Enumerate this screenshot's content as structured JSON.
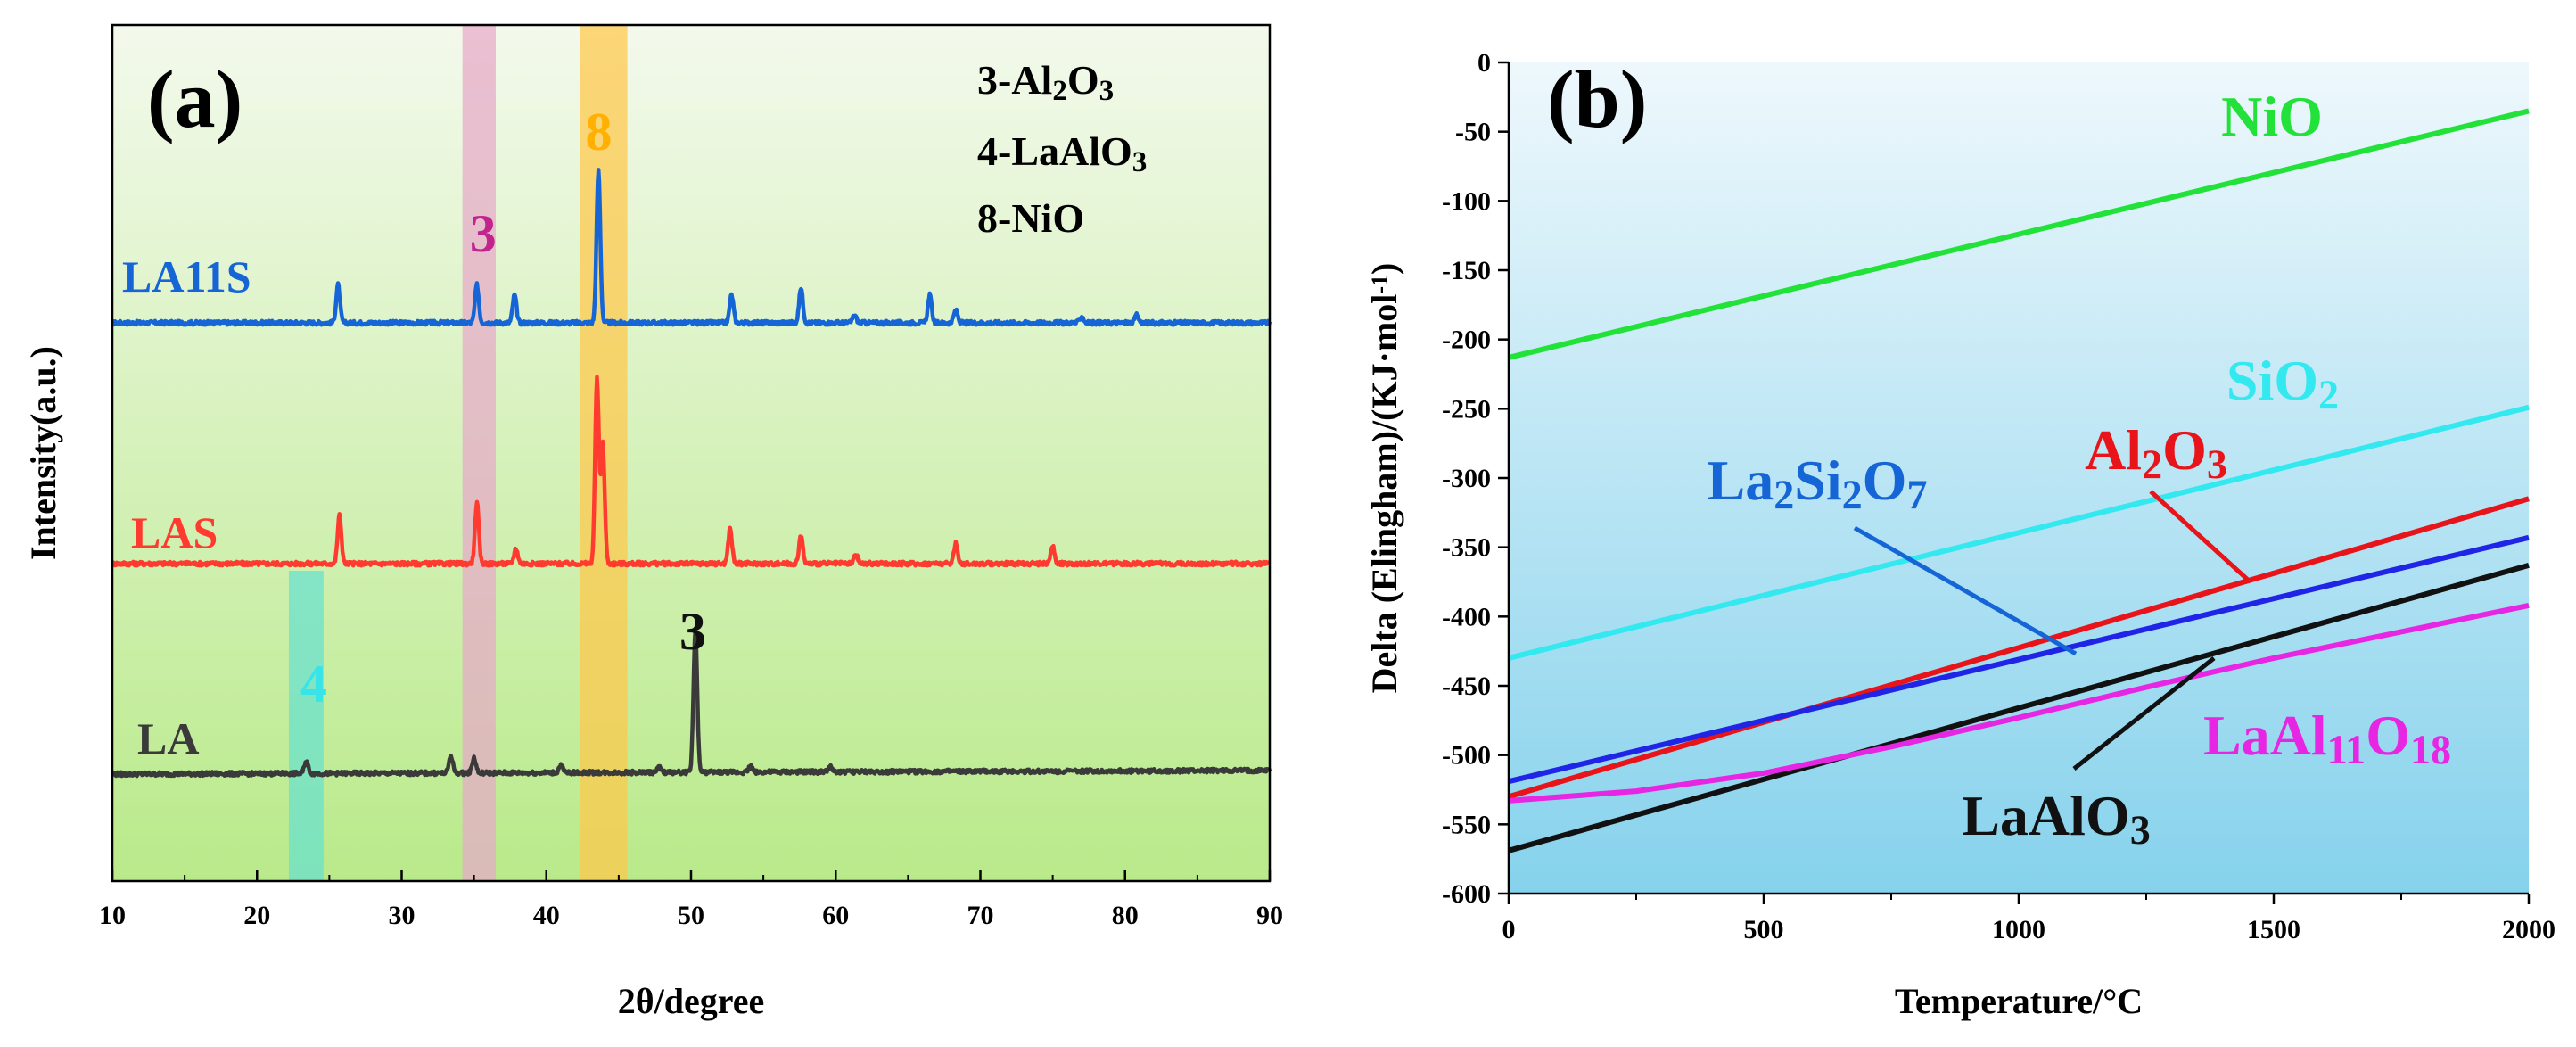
{
  "chart_data": [
    {
      "type": "line",
      "panel_label": "(a)",
      "xlabel": "2θ/degree",
      "ylabel": "Intensity(a.u.)",
      "xlim": [
        10,
        90
      ],
      "xticks": [
        "10",
        "20",
        "30",
        "40",
        "50",
        "60",
        "70",
        "80",
        "90"
      ],
      "legend": [
        {
          "id": "3",
          "text": "3-Al",
          "sub": "2",
          "text2": "O",
          "sub2": "3"
        },
        {
          "id": "4",
          "text": "4-LaAlO",
          "sub": "3",
          "text2": "",
          "sub2": ""
        },
        {
          "id": "8",
          "text": "8-NiO",
          "sub": "",
          "text2": "",
          "sub2": ""
        }
      ],
      "bands": [
        {
          "name": "4",
          "x0": 22.2,
          "x1": 24.6,
          "color": "#66e0cf",
          "label_color": "#38e4e8",
          "label_x": 23.0,
          "extent": "bottom"
        },
        {
          "name": "3",
          "x0": 34.2,
          "x1": 36.5,
          "color": "#e6a9c8",
          "label_color": "#c2248e",
          "label_x": 34.7,
          "extent": "full"
        },
        {
          "name": "8",
          "x0": 42.3,
          "x1": 45.6,
          "color": "#ffc84a",
          "label_color": "#ffb000",
          "label_x": 42.7,
          "extent": "full"
        }
      ],
      "annotations": [
        {
          "text": "3",
          "x": 49.2,
          "series": "LA",
          "color": "#111111"
        }
      ],
      "series": [
        {
          "name": "LA11S",
          "color": "#1565d6",
          "peaks": [
            [
              25.6,
              30
            ],
            [
              35.2,
              30
            ],
            [
              37.8,
              22
            ],
            [
              43.6,
              120
            ],
            [
              52.8,
              22
            ],
            [
              57.6,
              28
            ],
            [
              61.3,
              6
            ],
            [
              66.5,
              22
            ],
            [
              68.3,
              10
            ],
            [
              77.0,
              5
            ],
            [
              80.8,
              6
            ]
          ]
        },
        {
          "name": "LAS",
          "color": "#ff3b30",
          "peaks": [
            [
              25.7,
              38
            ],
            [
              35.2,
              48
            ],
            [
              37.9,
              12
            ],
            [
              43.5,
              145
            ],
            [
              43.9,
              95
            ],
            [
              52.7,
              28
            ],
            [
              57.6,
              22
            ],
            [
              61.4,
              7
            ],
            [
              68.3,
              16
            ],
            [
              75.0,
              14
            ]
          ]
        },
        {
          "name": "LA",
          "color": "#3a3a3a",
          "peaks": [
            [
              23.4,
              10
            ],
            [
              33.4,
              14
            ],
            [
              35.0,
              12
            ],
            [
              41.0,
              6
            ],
            [
              47.8,
              4
            ],
            [
              50.3,
              112
            ],
            [
              54.1,
              5
            ],
            [
              59.6,
              4
            ]
          ]
        }
      ]
    },
    {
      "type": "line",
      "panel_label": "(b)",
      "xlabel": "Temperature/°C",
      "ylabel": "Delta (Elingham)/(KJ·mol",
      "ylabel_sup": "-1",
      "ylabel_end": ")",
      "xlim": [
        0,
        2000
      ],
      "ylim": [
        -600,
        0
      ],
      "xticks": [
        "0",
        "500",
        "1000",
        "1500",
        "2000"
      ],
      "yticks": [
        "0",
        "-50",
        "-100",
        "-150",
        "-200",
        "-250",
        "-300",
        "-350",
        "-400",
        "-450",
        "-500",
        "-550",
        "-600"
      ],
      "series": [
        {
          "name": "NiO",
          "color": "#22e23a",
          "x": [
            0,
            2000
          ],
          "y": [
            -213,
            -35
          ]
        },
        {
          "name": "SiO2",
          "color": "#33e8ef",
          "x": [
            0,
            2000
          ],
          "y": [
            -430,
            -249
          ]
        },
        {
          "name": "Al2O3",
          "color": "#e8141a",
          "x": [
            0,
            2000
          ],
          "y": [
            -530,
            -315
          ]
        },
        {
          "name": "La2Si2O7",
          "color": "#1f24e6",
          "x": [
            0,
            2000
          ],
          "y": [
            -519,
            -343
          ]
        },
        {
          "name": "LaAlO3",
          "color": "#111111",
          "x": [
            0,
            2000
          ],
          "y": [
            -569,
            -363
          ]
        },
        {
          "name": "LaAl11O18",
          "color": "#e626e2",
          "x": [
            0,
            250,
            500,
            750,
            1000,
            1250,
            1500,
            1750,
            2000
          ],
          "y": [
            -533,
            -526,
            -513,
            -494,
            -473,
            -451,
            -430,
            -411,
            -392
          ]
        }
      ],
      "labels": [
        {
          "series": "NiO",
          "parts": [
            [
              "NiO",
              ""
            ]
          ],
          "color": "#22e23a"
        },
        {
          "series": "SiO2",
          "parts": [
            [
              "SiO",
              ""
            ],
            [
              "2",
              "sub"
            ]
          ],
          "color": "#33e8ef"
        },
        {
          "series": "Al2O3",
          "parts": [
            [
              "Al",
              ""
            ],
            [
              "2",
              "sub"
            ],
            [
              "O",
              ""
            ],
            [
              "3",
              "sub"
            ]
          ],
          "color": "#e8141a"
        },
        {
          "series": "La2Si2O7",
          "parts": [
            [
              "La",
              ""
            ],
            [
              "2",
              "sub"
            ],
            [
              "Si",
              ""
            ],
            [
              "2",
              "sub"
            ],
            [
              "O",
              ""
            ],
            [
              "7",
              "sub"
            ]
          ],
          "color": "#1565d6"
        },
        {
          "series": "LaAlO3",
          "parts": [
            [
              "LaAlO",
              ""
            ],
            [
              "3",
              "sub"
            ]
          ],
          "color": "#111111"
        },
        {
          "series": "LaAl11O18",
          "parts": [
            [
              "LaAl",
              ""
            ],
            [
              "11",
              "sub"
            ],
            [
              "O",
              ""
            ],
            [
              "18",
              "sub"
            ]
          ],
          "color": "#e626e2"
        }
      ]
    }
  ]
}
